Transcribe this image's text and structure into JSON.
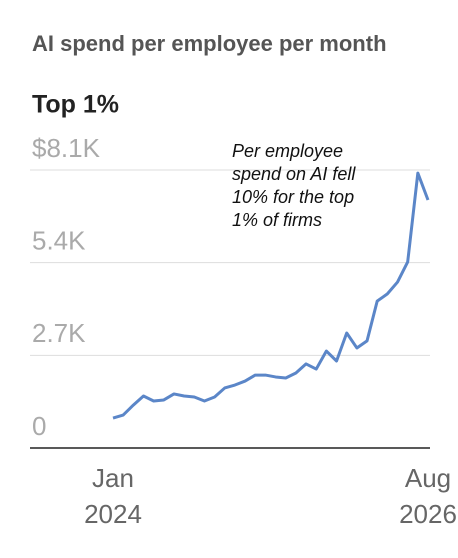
{
  "chart_data": {
    "type": "line",
    "title": "AI spend per employee per month",
    "subtitle": "Top 1%",
    "annotation": [
      "Per employee",
      "spend on AI fell",
      "10% for the top",
      "1% of firms"
    ],
    "categories": [
      "Jan 2024",
      null,
      null,
      null,
      null,
      null,
      null,
      null,
      null,
      null,
      null,
      null,
      null,
      null,
      null,
      null,
      null,
      null,
      null,
      null,
      null,
      null,
      null,
      null,
      null,
      null,
      null,
      null,
      null,
      null,
      null,
      "Aug 2026"
    ],
    "values": [
      874,
      960,
      1250,
      1515,
      1370,
      1400,
      1575,
      1515,
      1485,
      1370,
      1485,
      1750,
      1835,
      1950,
      2125,
      2125,
      2070,
      2040,
      2185,
      2450,
      2300,
      2825,
      2535,
      3350,
      2915,
      3120,
      4280,
      4490,
      4835,
      5420,
      8010,
      7225
    ],
    "color": "#5b86c8",
    "ylim": [
      0,
      8100
    ],
    "yticks": [
      0,
      {
        "value": 2700,
        "label": "2.7K"
      },
      {
        "value": 5400,
        "label": "5.4K"
      },
      {
        "value": 8100,
        "label": "$8.1K"
      }
    ],
    "grid": true
  }
}
